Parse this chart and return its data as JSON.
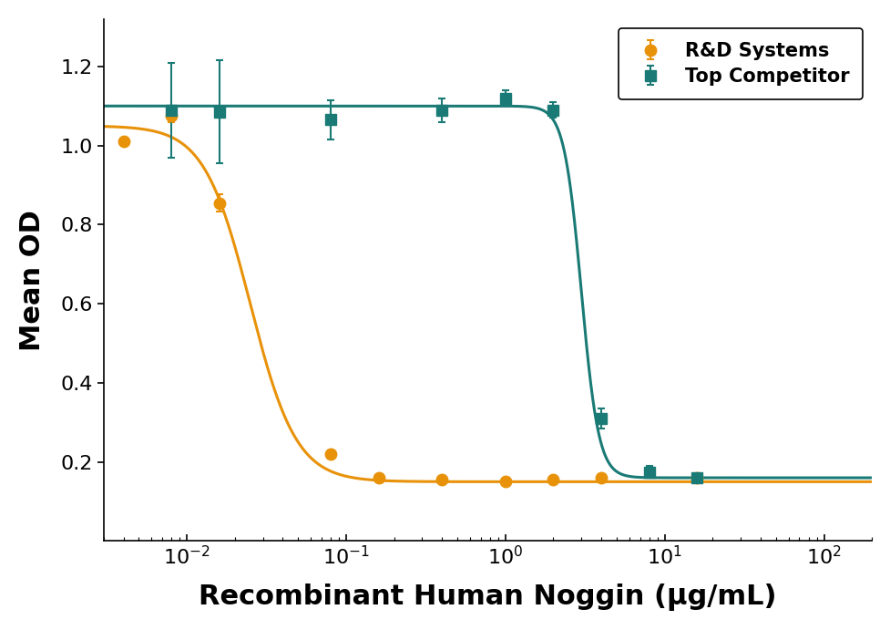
{
  "title": "",
  "xlabel": "Recombinant Human Noggin (μg/mL)",
  "ylabel": "Mean OD",
  "background_color": "#ffffff",
  "rnd_x": [
    0.004,
    0.008,
    0.016,
    0.08,
    0.16,
    0.4,
    1.0,
    2.0,
    4.0,
    16.0
  ],
  "rnd_y": [
    1.01,
    1.075,
    0.855,
    0.22,
    0.16,
    0.155,
    0.15,
    0.155,
    0.16,
    0.16
  ],
  "rnd_yerr": [
    0.005,
    0.015,
    0.022,
    0.01,
    0.005,
    0.005,
    0.005,
    0.005,
    0.005,
    0.005
  ],
  "rnd_color": "#E8920A",
  "rnd_label": "R&D Systems",
  "comp_x": [
    0.008,
    0.016,
    0.08,
    0.4,
    1.0,
    2.0,
    4.0,
    8.0,
    16.0
  ],
  "comp_y": [
    1.09,
    1.085,
    1.065,
    1.09,
    1.12,
    1.09,
    0.31,
    0.175,
    0.16
  ],
  "comp_yerr": [
    0.12,
    0.13,
    0.05,
    0.03,
    0.02,
    0.02,
    0.025,
    0.015,
    0.01
  ],
  "comp_color": "#1A7A75",
  "comp_label": "Top Competitor",
  "ylim": [
    0.0,
    1.32
  ],
  "xlim_low": 0.003,
  "xlim_high": 200.0,
  "legend_fontsize": 15,
  "axis_label_fontsize": 22,
  "tick_fontsize": 16,
  "marker_size": 9,
  "line_width": 2.2
}
